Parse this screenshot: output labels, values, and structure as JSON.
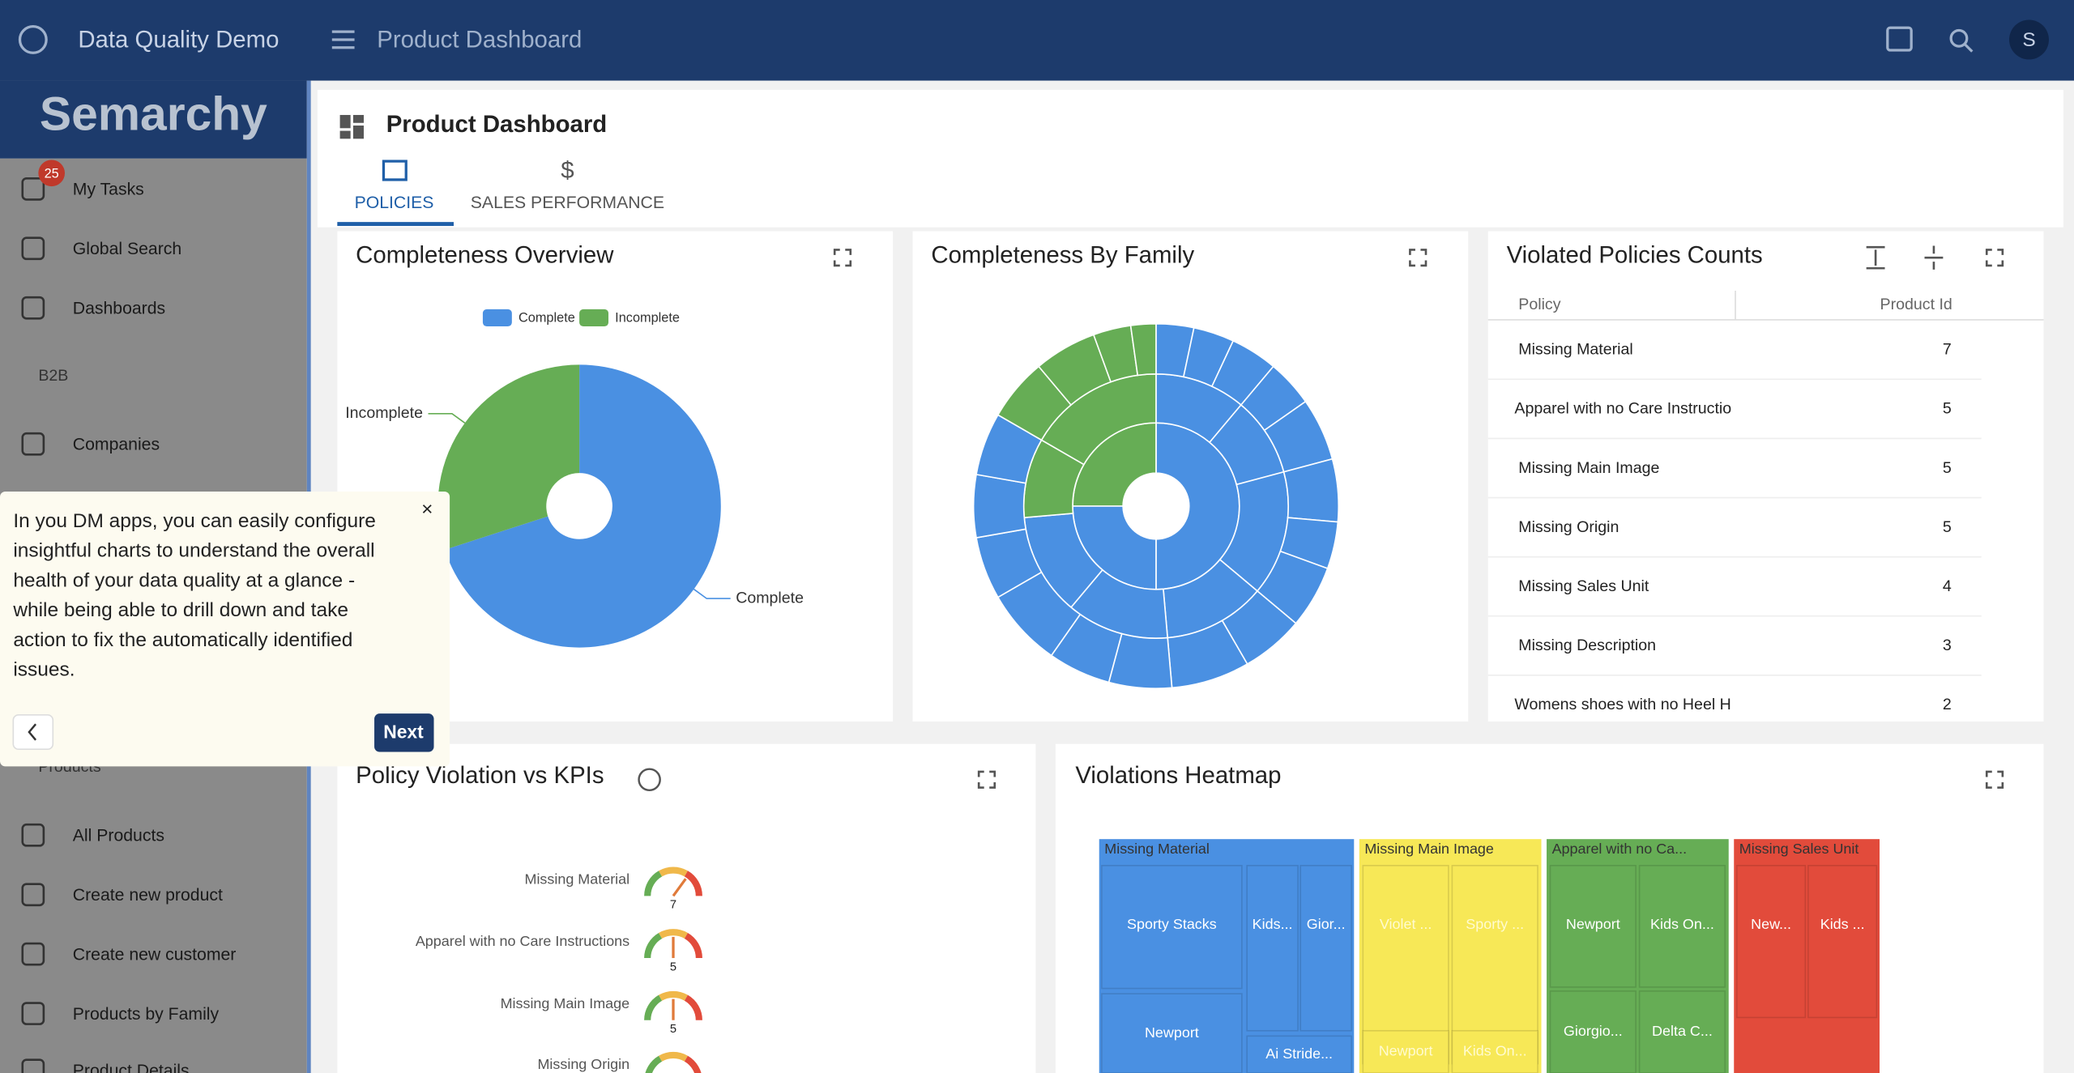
{
  "app": {
    "name": "Data Quality Demo",
    "page_title": "Product Dashboard",
    "avatar": "S",
    "logo": "Semarchy"
  },
  "sidebar": {
    "badge": "25",
    "items": [
      "My Tasks",
      "Global Search",
      "Dashboards"
    ],
    "section1": "B2B",
    "section1_items": [
      "Companies"
    ],
    "section2": "Products",
    "section2_items": [
      "All Products",
      "Create new product",
      "Create new customer",
      "Products by Family",
      "Product Details"
    ]
  },
  "dashboard": {
    "title": "Product Dashboard",
    "tabs": [
      "POLICIES",
      "SALES PERFORMANCE"
    ]
  },
  "chart_data": [
    {
      "type": "pie",
      "title": "Completeness Overview",
      "categories": [
        "Complete",
        "Incomplete"
      ],
      "values": [
        70,
        30
      ],
      "colors": [
        "#4a90e2",
        "#66ad55"
      ]
    },
    {
      "type": "sunburst",
      "title": "Completeness By Family"
    },
    {
      "type": "gauge",
      "title": "Policy Violation vs KPIs",
      "categories": [
        "Missing Material",
        "Apparel with no Care Instructions",
        "Missing Main Image",
        "Missing Origin"
      ],
      "values": [
        7,
        5,
        5,
        null
      ],
      "ylim": [
        0,
        10
      ]
    },
    {
      "type": "treemap",
      "title": "Violations Heatmap",
      "series": [
        {
          "name": "Missing Material",
          "color": "#4a90e2",
          "value": 7,
          "leaves": [
            "Sporty Stacks",
            "Newport",
            "Kids...",
            "Gior...",
            "Ai Stride..."
          ]
        },
        {
          "name": "Missing Main Image",
          "color": "#f7e857",
          "value": 5,
          "leaves": [
            "Violet ...",
            "Sporty ...",
            "Newport",
            "Kids On..."
          ]
        },
        {
          "name": "Apparel with no Ca...",
          "color": "#66ad55",
          "value": 5,
          "leaves": [
            "Newport",
            "Kids On...",
            "Giorgio...",
            "Delta C..."
          ]
        },
        {
          "name": "Missing Sales Unit",
          "color": "#e24b3b",
          "value": 4,
          "leaves": [
            "New...",
            "Kids ..."
          ]
        }
      ]
    }
  ],
  "table": {
    "title": "Violated Policies Counts",
    "columns": [
      "Policy",
      "Product Id"
    ],
    "rows": [
      [
        "Missing Material",
        7
      ],
      [
        "Apparel with no Care Instructio",
        5
      ],
      [
        "Missing Main Image",
        5
      ],
      [
        "Missing Origin",
        5
      ],
      [
        "Missing Sales Unit",
        4
      ],
      [
        "Missing Description",
        3
      ],
      [
        "Womens shoes with no Heel H",
        2
      ]
    ]
  },
  "tour": {
    "lines": [
      "In you DM apps, you can easily configure",
      "insightful charts to understand the overall",
      "health of your data quality at a glance -",
      "while being able to drill down and take",
      "action to fix the automatically identified",
      "issues."
    ],
    "button": "Next",
    "close": "×"
  }
}
